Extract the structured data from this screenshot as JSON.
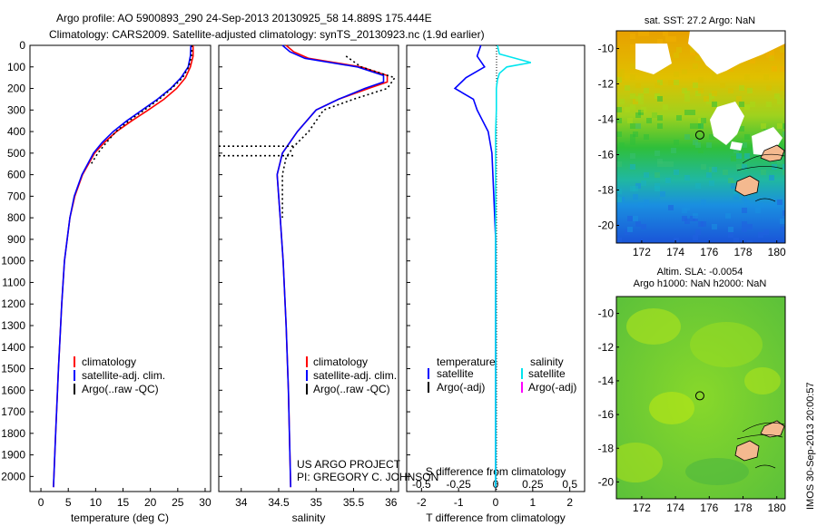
{
  "header": {
    "line1": "Argo profile: AO 5900893_290 24-Sep-2013 20130925_58 14.889S 175.444E",
    "line2": "Climatology: CARS2009. Satellite-adjusted climatology: synTS_20130923.nc (1.9d earlier)"
  },
  "side_label": "IMOS 30-Sep-2013 20:00:57",
  "credit": {
    "line1": "US ARGO PROJECT",
    "line2": "PI: GREGORY C. JOHNSON"
  },
  "colors": {
    "climatology": "#ff0000",
    "satellite": "#0000ff",
    "argo": "#000000",
    "sat_salinity": "#00e5ee",
    "argo_salinity_adj": "#ff00ff"
  },
  "chart_data": [
    {
      "type": "line",
      "xlabel": "temperature (deg C)",
      "xlim": [
        -2,
        31
      ],
      "ylim": [
        2070,
        0
      ],
      "xticks": [
        "0",
        "5",
        "10",
        "15",
        "20",
        "25",
        "30"
      ],
      "yticks": [
        "0",
        "100",
        "200",
        "300",
        "400",
        "500",
        "600",
        "700",
        "800",
        "900",
        "1000",
        "1100",
        "1200",
        "1300",
        "1400",
        "1500",
        "1600",
        "1700",
        "1800",
        "1900",
        "2000"
      ],
      "legend": [
        "climatology",
        "satellite-adj. clim.",
        "Argo(..raw -QC)"
      ],
      "series": [
        {
          "name": "climatology",
          "color": "#ff0000",
          "depth": [
            0,
            50,
            100,
            150,
            200,
            250,
            300,
            350,
            400,
            450,
            500,
            600,
            700,
            800,
            900,
            1000,
            1200,
            1500,
            1800,
            2050
          ],
          "values": [
            27.8,
            27.8,
            27.3,
            26.4,
            24.8,
            22.5,
            19.6,
            16.6,
            13.8,
            11.6,
            9.8,
            7.6,
            6.2,
            5.3,
            4.8,
            4.3,
            3.8,
            3.2,
            2.7,
            2.3
          ]
        },
        {
          "name": "satellite-adj. clim.",
          "color": "#0000ff",
          "depth": [
            0,
            50,
            100,
            150,
            200,
            250,
            300,
            350,
            400,
            450,
            500,
            600,
            700,
            800,
            900,
            1000,
            1200,
            1500,
            1800,
            2050
          ],
          "values": [
            27.4,
            27.3,
            26.9,
            25.6,
            23.7,
            21.3,
            18.5,
            15.7,
            13.2,
            11.2,
            9.6,
            7.5,
            6.1,
            5.3,
            4.8,
            4.3,
            3.8,
            3.2,
            2.7,
            2.3
          ]
        },
        {
          "name": "Argo(..raw -QC)",
          "color": "#000000",
          "depth": [
            0,
            50,
            100,
            150,
            200,
            250,
            300,
            350,
            400,
            450,
            500,
            550
          ],
          "values": [
            27.6,
            27.5,
            27.0,
            25.9,
            23.9,
            21.6,
            18.9,
            16.1,
            13.7,
            12.0,
            10.4,
            9.2
          ]
        }
      ]
    },
    {
      "type": "line",
      "xlabel": "salinity",
      "xlim": [
        33.7,
        36.1
      ],
      "ylim": [
        2070,
        0
      ],
      "xticks": [
        "34",
        "34.5",
        "35",
        "35.5",
        "36"
      ],
      "legend": [
        "climatology",
        "satellite-adj. clim.",
        "Argo(..raw -QC)"
      ],
      "series": [
        {
          "name": "climatology",
          "color": "#ff0000",
          "depth": [
            0,
            30,
            60,
            100,
            140,
            170,
            200,
            250,
            300,
            400,
            500,
            600,
            700,
            800,
            1000,
            1300,
            1600,
            2050
          ],
          "values": [
            34.6,
            34.7,
            34.9,
            35.6,
            35.95,
            35.95,
            35.7,
            35.3,
            35.0,
            34.75,
            34.55,
            34.48,
            34.5,
            34.52,
            34.56,
            34.6,
            34.63,
            34.66
          ]
        },
        {
          "name": "satellite-adj. clim.",
          "color": "#0000ff",
          "depth": [
            0,
            30,
            60,
            100,
            140,
            170,
            200,
            250,
            300,
            400,
            500,
            600,
            700,
            800,
            1000,
            1300,
            1600,
            2050
          ],
          "values": [
            34.55,
            34.65,
            34.85,
            35.55,
            35.9,
            35.9,
            35.65,
            35.3,
            35.0,
            34.75,
            34.55,
            34.48,
            34.5,
            34.52,
            34.56,
            34.6,
            34.63,
            34.66
          ]
        },
        {
          "name": "Argo(..raw -QC)",
          "color": "#000000",
          "depth": [
            50,
            100,
            150,
            200,
            250,
            300,
            400,
            470,
            520,
            600,
            700,
            800
          ],
          "values": [
            35.4,
            35.6,
            36.05,
            35.95,
            35.5,
            35.1,
            34.9,
            34.7,
            34.6,
            34.55,
            34.55,
            34.55
          ]
        }
      ]
    },
    {
      "type": "line",
      "xlabel": "T difference from climatology",
      "xlabel2": "S difference from climatology",
      "xlim": [
        -2.4,
        2.4
      ],
      "ylim": [
        2070,
        0
      ],
      "xticks": [
        "-2",
        "-1",
        "0",
        "1",
        "2"
      ],
      "xticks2": [
        "-0.5",
        "-0.25",
        "0",
        "0.25",
        "0.5"
      ],
      "legend_left": [
        "temperature",
        "satellite",
        "Argo(-adj)"
      ],
      "legend_right": [
        "salinity",
        "satellite",
        "Argo(-adj)"
      ],
      "series": [
        {
          "name": "satellite",
          "color": "#0000ff",
          "depth": [
            0,
            50,
            100,
            150,
            200,
            250,
            300,
            400,
            500,
            700,
            900,
            1200,
            1500,
            1800,
            2050
          ],
          "values": [
            -0.4,
            -0.5,
            -0.3,
            -0.8,
            -1.1,
            -0.6,
            -0.5,
            -0.2,
            -0.1,
            -0.05,
            0.0,
            0.0,
            0.0,
            0.0,
            0.0
          ]
        },
        {
          "name": "satellite",
          "color": "#00e5ee",
          "depth": [
            0,
            40,
            80,
            100,
            130,
            160,
            200,
            300,
            400,
            600,
            800,
            1200,
            1600,
            2050
          ],
          "values": [
            0.05,
            0.1,
            0.95,
            0.3,
            0.1,
            0.05,
            0.02,
            0.02,
            0.0,
            0.0,
            0.0,
            0.0,
            0.0,
            0.0
          ]
        }
      ]
    }
  ],
  "maps": [
    {
      "title": "sat. SST: 27.2 Argo: NaN",
      "xticks": [
        "172",
        "174",
        "176",
        "178",
        "180"
      ],
      "yticks": [
        "-10",
        "-12",
        "-14",
        "-16",
        "-18",
        "-20"
      ],
      "xlim": [
        170.5,
        180.5
      ],
      "ylim": [
        -21,
        -9
      ]
    },
    {
      "title1": "Altim. SLA: -0.0054",
      "title2": "Argo h1000: NaN h2000: NaN",
      "xticks": [
        "172",
        "174",
        "176",
        "178",
        "180"
      ],
      "yticks": [
        "-10",
        "-12",
        "-14",
        "-16",
        "-18",
        "-20"
      ],
      "xlim": [
        170.5,
        180.5
      ],
      "ylim": [
        -21,
        -9
      ]
    }
  ],
  "float_position": {
    "lon": 175.444,
    "lat": -14.889
  }
}
